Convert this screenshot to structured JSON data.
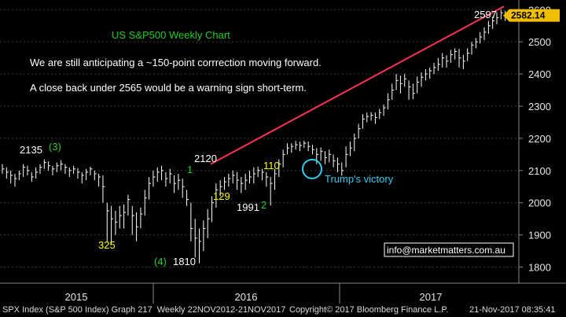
{
  "chart_data": {
    "type": "bar",
    "title": "US S&P500 Weekly Chart",
    "commentary": [
      "We are still anticipating a ~150-point corrrection moving forward.",
      "A close back under 2565 would be a warning sign short-term."
    ],
    "ylim": [
      1750,
      2630
    ],
    "y_ticks": [
      "2600",
      "2500",
      "2400",
      "2300",
      "2200",
      "2100",
      "2000",
      "1900",
      "1800"
    ],
    "x_tick_labels": [
      "2015",
      "2016",
      "2017"
    ],
    "last_price": "2582.14",
    "annotations": [
      {
        "text": "2135",
        "color": "#ffffff"
      },
      {
        "text": "(3)",
        "color": "#22cc22"
      },
      {
        "text": "325",
        "color": "#ffff00"
      },
      {
        "text": "(4)",
        "color": "#22cc22"
      },
      {
        "text": "1810",
        "color": "#ffffff"
      },
      {
        "text": "2120",
        "color": "#ffffff"
      },
      {
        "text": "1",
        "color": "#22cc22"
      },
      {
        "text": "129",
        "color": "#ffff00"
      },
      {
        "text": "1991",
        "color": "#ffffff"
      },
      {
        "text": "2",
        "color": "#22cc22"
      },
      {
        "text": "110",
        "color": "#ffff00"
      },
      {
        "text": "Trump's victory",
        "color": "#33ccee"
      },
      {
        "text": "2597",
        "color": "#ffffff"
      }
    ],
    "trendline": {
      "from": 2120,
      "to": 2610,
      "color": "#ff3355"
    },
    "marker_circle": {
      "value": 2100,
      "color": "#33ccee"
    },
    "contact": "info@marketmatters.com.au",
    "colors": {
      "bars": "#ffffff",
      "grid": "#3a3a3a",
      "price_tag": "#f0c000",
      "title": "#22cc22"
    },
    "bars": [
      [
        2105,
        2090,
        2120
      ],
      [
        2095,
        2075,
        2110
      ],
      [
        2085,
        2060,
        2100
      ],
      [
        2075,
        2050,
        2090
      ],
      [
        2090,
        2070,
        2100
      ],
      [
        2110,
        2080,
        2120
      ],
      [
        2100,
        2085,
        2115
      ],
      [
        2080,
        2065,
        2095
      ],
      [
        2095,
        2075,
        2110
      ],
      [
        2110,
        2090,
        2120
      ],
      [
        2125,
        2105,
        2135
      ],
      [
        2115,
        2100,
        2128
      ],
      [
        2105,
        2085,
        2115
      ],
      [
        2115,
        2095,
        2125
      ],
      [
        2120,
        2100,
        2132
      ],
      [
        2110,
        2090,
        2120
      ],
      [
        2100,
        2080,
        2110
      ],
      [
        2105,
        2090,
        2115
      ],
      [
        2095,
        2075,
        2108
      ],
      [
        2085,
        2060,
        2095
      ],
      [
        2095,
        2070,
        2105
      ],
      [
        2105,
        2085,
        2112
      ],
      [
        2090,
        2070,
        2100
      ],
      [
        2080,
        2050,
        2090
      ],
      [
        2050,
        2000,
        2085
      ],
      [
        1975,
        1880,
        2000
      ],
      [
        1950,
        1870,
        1990
      ],
      [
        1940,
        1900,
        1975
      ],
      [
        1960,
        1920,
        1990
      ],
      [
        1970,
        1920,
        1995
      ],
      [
        2010,
        1960,
        2025
      ],
      [
        1960,
        1900,
        1990
      ],
      [
        1925,
        1880,
        1970
      ],
      [
        1965,
        1920,
        1985
      ],
      [
        2015,
        1960,
        2040
      ],
      [
        2060,
        2010,
        2080
      ],
      [
        2080,
        2050,
        2100
      ],
      [
        2095,
        2065,
        2110
      ],
      [
        2100,
        2070,
        2115
      ],
      [
        2075,
        2050,
        2095
      ],
      [
        2090,
        2060,
        2105
      ],
      [
        2060,
        2030,
        2085
      ],
      [
        2070,
        2040,
        2090
      ],
      [
        2050,
        2015,
        2075
      ],
      [
        2010,
        1990,
        2040
      ],
      [
        1920,
        1880,
        2000
      ],
      [
        1890,
        1830,
        1950
      ],
      [
        1880,
        1812,
        1920
      ],
      [
        1920,
        1850,
        1945
      ],
      [
        1950,
        1890,
        1980
      ],
      [
        2000,
        1940,
        2020
      ],
      [
        2040,
        1985,
        2060
      ],
      [
        2050,
        2020,
        2070
      ],
      [
        2065,
        2040,
        2080
      ],
      [
        2075,
        2050,
        2090
      ],
      [
        2085,
        2060,
        2100
      ],
      [
        2070,
        2040,
        2095
      ],
      [
        2060,
        2030,
        2080
      ],
      [
        2070,
        2040,
        2090
      ],
      [
        2080,
        2060,
        2100
      ],
      [
        2090,
        2060,
        2110
      ],
      [
        2100,
        2080,
        2112
      ],
      [
        2095,
        2070,
        2105
      ],
      [
        2080,
        2050,
        2095
      ],
      [
        2060,
        1991,
        2080
      ],
      [
        2090,
        2040,
        2105
      ],
      [
        2120,
        2080,
        2135
      ],
      [
        2150,
        2110,
        2165
      ],
      [
        2170,
        2150,
        2185
      ],
      [
        2175,
        2155,
        2185
      ],
      [
        2180,
        2165,
        2192
      ],
      [
        2178,
        2160,
        2190
      ],
      [
        2185,
        2170,
        2193
      ],
      [
        2175,
        2160,
        2190
      ],
      [
        2165,
        2150,
        2180
      ],
      [
        2150,
        2120,
        2170
      ],
      [
        2160,
        2130,
        2172
      ],
      [
        2140,
        2120,
        2160
      ],
      [
        2150,
        2125,
        2165
      ],
      [
        2130,
        2110,
        2150
      ],
      [
        2120,
        2095,
        2140
      ],
      [
        2100,
        2084,
        2125
      ],
      [
        2150,
        2110,
        2175
      ],
      [
        2170,
        2145,
        2190
      ],
      [
        2200,
        2160,
        2215
      ],
      [
        2230,
        2200,
        2245
      ],
      [
        2260,
        2230,
        2275
      ],
      [
        2268,
        2250,
        2280
      ],
      [
        2272,
        2255,
        2282
      ],
      [
        2265,
        2245,
        2280
      ],
      [
        2280,
        2260,
        2292
      ],
      [
        2295,
        2270,
        2305
      ],
      [
        2320,
        2290,
        2340
      ],
      [
        2350,
        2320,
        2370
      ],
      [
        2380,
        2350,
        2400
      ],
      [
        2370,
        2340,
        2395
      ],
      [
        2385,
        2360,
        2400
      ],
      [
        2360,
        2320,
        2380
      ],
      [
        2340,
        2322,
        2370
      ],
      [
        2375,
        2340,
        2392
      ],
      [
        2390,
        2360,
        2405
      ],
      [
        2400,
        2380,
        2415
      ],
      [
        2410,
        2385,
        2420
      ],
      [
        2420,
        2400,
        2435
      ],
      [
        2430,
        2410,
        2450
      ],
      [
        2450,
        2420,
        2465
      ],
      [
        2440,
        2420,
        2458
      ],
      [
        2460,
        2435,
        2475
      ],
      [
        2470,
        2445,
        2480
      ],
      [
        2450,
        2420,
        2478
      ],
      [
        2440,
        2415,
        2460
      ],
      [
        2465,
        2440,
        2480
      ],
      [
        2490,
        2460,
        2500
      ],
      [
        2500,
        2480,
        2512
      ],
      [
        2515,
        2495,
        2530
      ],
      [
        2530,
        2505,
        2545
      ],
      [
        2550,
        2525,
        2565
      ],
      [
        2565,
        2540,
        2578
      ],
      [
        2575,
        2555,
        2592
      ],
      [
        2590,
        2570,
        2600
      ],
      [
        2585,
        2565,
        2597
      ],
      [
        2582,
        2570,
        2590
      ]
    ]
  }
}
